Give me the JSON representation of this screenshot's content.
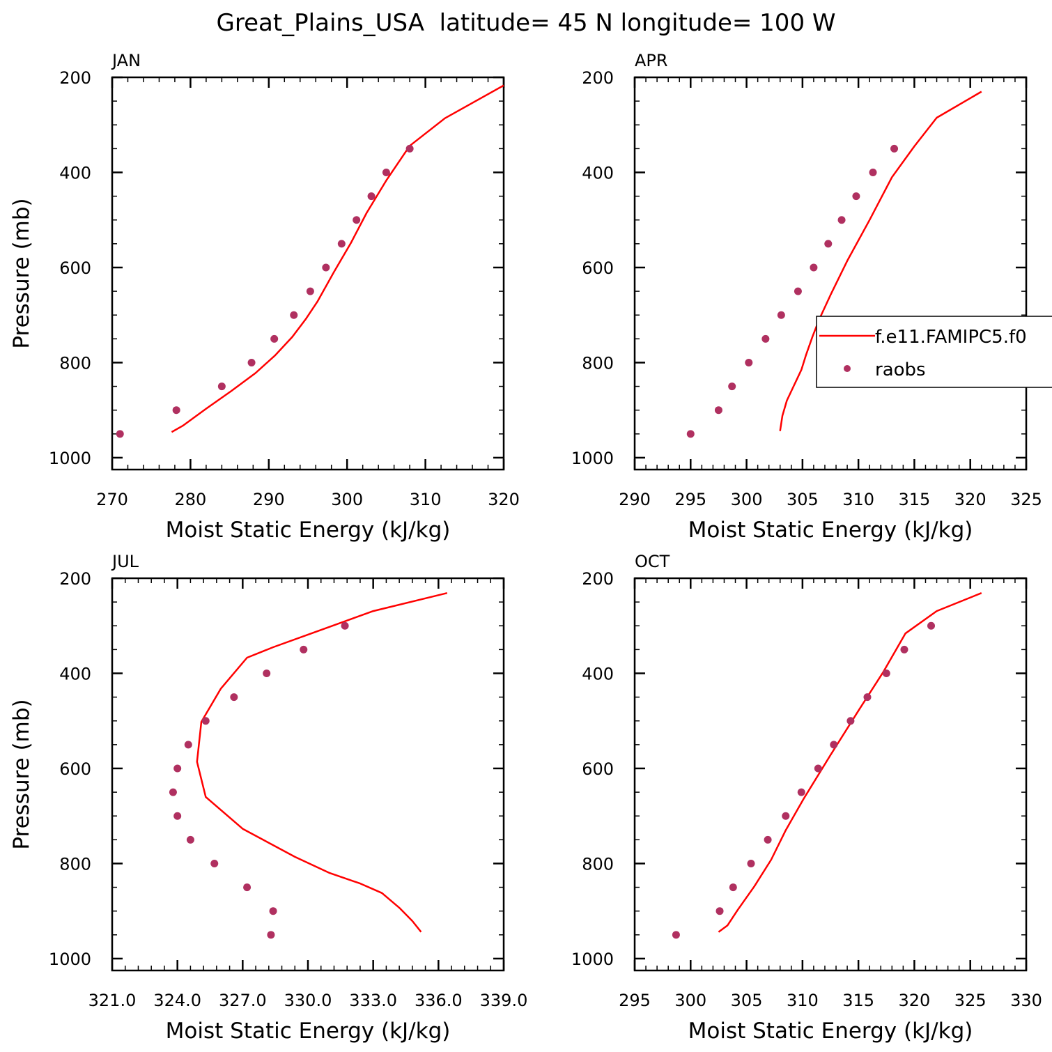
{
  "title": "Great_Plains_USA  latitude= 45 N longitude= 100 W",
  "colors": {
    "model_line": "#ff0000",
    "obs_marker": "#b03060",
    "axes": "#000000"
  },
  "legend": {
    "model_label": "f.e11.FAMIPC5.f0",
    "obs_label": "raobs"
  },
  "chart_data": [
    {
      "type": "line",
      "panel_title": "JAN",
      "xlabel": "Moist Static Energy (kJ/kg)",
      "ylabel": "Pressure (mb)",
      "xlim": [
        270,
        320
      ],
      "ylim": [
        200,
        1025
      ],
      "y_inverted": true,
      "xticks": [
        270,
        280,
        290,
        300,
        310,
        320
      ],
      "xtick_labels": [
        "270",
        "280",
        "290",
        "300",
        "310",
        "320"
      ],
      "xminor": 2,
      "yticks": [
        200,
        400,
        600,
        800,
        1000
      ],
      "ytick_labels": [
        "200",
        "400",
        "600",
        "800",
        "1000"
      ],
      "yminor": 50,
      "series": [
        {
          "kind": "line",
          "x": [
            277.6,
            279.0,
            282.0,
            285.2,
            288.3,
            290.8,
            293.0,
            294.7,
            296.2,
            298.3,
            300.5,
            302.5,
            305.0,
            308.0,
            312.5,
            320.0
          ],
          "y": [
            946,
            933,
            897,
            860,
            822,
            785,
            746,
            709,
            672,
            610,
            548,
            485,
            417,
            344,
            286,
            217
          ]
        },
        {
          "kind": "scatter",
          "x": [
            271.0,
            278.2,
            284.0,
            287.8,
            290.7,
            293.2,
            295.3,
            297.3,
            299.3,
            301.2,
            303.1,
            305.0,
            308.0
          ],
          "y": [
            950,
            900,
            850,
            800,
            750,
            700,
            650,
            600,
            550,
            500,
            450,
            400,
            350
          ]
        }
      ]
    },
    {
      "type": "line",
      "panel_title": "APR",
      "xlabel": "Moist Static Energy (kJ/kg)",
      "ylabel": "",
      "xlim": [
        290,
        325
      ],
      "ylim": [
        200,
        1025
      ],
      "y_inverted": true,
      "xticks": [
        290,
        295,
        300,
        305,
        310,
        315,
        320,
        325
      ],
      "xtick_labels": [
        "290",
        "295",
        "300",
        "305",
        "310",
        "315",
        "320",
        "325"
      ],
      "xminor": 1,
      "yticks": [
        200,
        400,
        600,
        800,
        1000
      ],
      "ytick_labels": [
        "200",
        "400",
        "600",
        "800",
        "1000"
      ],
      "yminor": 50,
      "series": [
        {
          "kind": "line",
          "x": [
            303.0,
            303.2,
            303.6,
            304.2,
            304.9,
            305.3,
            305.9,
            306.5,
            307.5,
            309.0,
            311.0,
            313.0,
            315.0,
            317.0,
            321.0
          ],
          "y": [
            944,
            912,
            880,
            850,
            815,
            785,
            745,
            709,
            658,
            586,
            500,
            410,
            345,
            285,
            230
          ]
        },
        {
          "kind": "scatter",
          "x": [
            295.0,
            297.5,
            298.7,
            300.2,
            301.7,
            303.1,
            304.6,
            306.0,
            307.3,
            308.5,
            309.8,
            311.3,
            313.2
          ],
          "y": [
            950,
            900,
            850,
            800,
            750,
            700,
            650,
            600,
            550,
            500,
            450,
            400,
            350
          ]
        }
      ]
    },
    {
      "type": "line",
      "panel_title": "JUL",
      "xlabel": "Moist Static Energy (kJ/kg)",
      "ylabel": "Pressure (mb)",
      "xlim": [
        321.0,
        339.0
      ],
      "ylim": [
        200,
        1025
      ],
      "y_inverted": true,
      "xticks": [
        321.0,
        324.0,
        327.0,
        330.0,
        333.0,
        336.0,
        339.0
      ],
      "xtick_labels": [
        "321.0",
        "324.0",
        "327.0",
        "330.0",
        "333.0",
        "336.0",
        "339.0"
      ],
      "xminor": 0.6,
      "yticks": [
        200,
        400,
        600,
        800,
        1000
      ],
      "ytick_labels": [
        "200",
        "400",
        "600",
        "800",
        "1000"
      ],
      "yminor": 50,
      "series": [
        {
          "kind": "line",
          "x": [
            335.2,
            334.8,
            334.2,
            333.4,
            332.4,
            331.0,
            329.4,
            327.0,
            325.3,
            324.9,
            325.1,
            326.0,
            327.2,
            328.4,
            330.4,
            333.0,
            336.4
          ],
          "y": [
            944,
            921,
            893,
            862,
            842,
            820,
            786,
            727,
            660,
            586,
            502,
            432,
            367,
            345,
            312,
            269,
            231
          ]
        },
        {
          "kind": "scatter",
          "x": [
            328.3,
            328.4,
            327.2,
            325.7,
            324.6,
            324.0,
            323.8,
            324.0,
            324.5,
            325.3,
            326.6,
            328.1,
            329.8,
            331.7
          ],
          "y": [
            950,
            900,
            850,
            800,
            750,
            700,
            650,
            600,
            550,
            500,
            450,
            400,
            350,
            300
          ]
        }
      ]
    },
    {
      "type": "line",
      "panel_title": "OCT",
      "xlabel": "Moist Static Energy (kJ/kg)",
      "ylabel": "",
      "xlim": [
        295,
        330
      ],
      "ylim": [
        200,
        1025
      ],
      "y_inverted": true,
      "xticks": [
        295,
        300,
        305,
        310,
        315,
        320,
        325,
        330
      ],
      "xtick_labels": [
        "295",
        "300",
        "305",
        "310",
        "315",
        "320",
        "325",
        "330"
      ],
      "xminor": 1,
      "yticks": [
        200,
        400,
        600,
        800,
        1000
      ],
      "ytick_labels": [
        "200",
        "400",
        "600",
        "800",
        "1000"
      ],
      "yminor": 50,
      "series": [
        {
          "kind": "line",
          "x": [
            302.5,
            303.3,
            304.2,
            305.7,
            307.2,
            308.5,
            310.1,
            312.5,
            315.1,
            317.2,
            319.2,
            322.0,
            326.0
          ],
          "y": [
            944,
            930,
            898,
            848,
            792,
            730,
            664,
            572,
            475,
            398,
            316,
            269,
            231
          ]
        },
        {
          "kind": "scatter",
          "x": [
            298.7,
            302.6,
            303.8,
            305.4,
            306.9,
            308.5,
            309.9,
            311.4,
            312.8,
            314.3,
            315.8,
            317.5,
            319.1,
            321.5
          ],
          "y": [
            950,
            900,
            850,
            800,
            750,
            700,
            650,
            600,
            550,
            500,
            450,
            400,
            350,
            300
          ]
        }
      ]
    }
  ]
}
